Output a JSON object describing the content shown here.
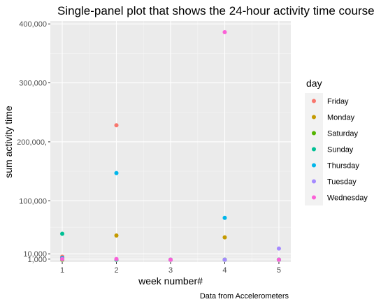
{
  "chart_data": {
    "type": "scatter",
    "title": "Single-panel plot that shows the 24-hour activity time course",
    "xlabel": "week number#",
    "ylabel": "sum activity time",
    "caption": "Data from Accelerometers",
    "x_ticks": [
      {
        "value": 1,
        "label": "1"
      },
      {
        "value": 2,
        "label": "2"
      },
      {
        "value": 3,
        "label": "3"
      },
      {
        "value": 4,
        "label": "4"
      },
      {
        "value": 5,
        "label": "5"
      }
    ],
    "y_ticks": [
      {
        "value": 1000,
        "label": "1,000"
      },
      {
        "value": 10000,
        "label": "10,000"
      },
      {
        "value": 100000,
        "label": "100,000"
      },
      {
        "value": 200000,
        "label": "200,000,"
      },
      {
        "value": 300000,
        "label": "300,000"
      },
      {
        "value": 400000,
        "label": "400,000"
      }
    ],
    "xlim": [
      0.78,
      5.22
    ],
    "ylim": [
      -4000,
      405000
    ],
    "grid": true,
    "legend_title": "day",
    "legend_position": "right",
    "series": [
      {
        "name": "Friday",
        "color": "#F8766D",
        "points": [
          {
            "x": 1,
            "y": 5000
          },
          {
            "x": 2,
            "y": 228000
          },
          {
            "x": 3,
            "y": 0
          },
          {
            "x": 4,
            "y": 0
          },
          {
            "x": 5,
            "y": 0
          }
        ]
      },
      {
        "name": "Monday",
        "color": "#C49A00",
        "points": [
          {
            "x": 1,
            "y": 2000
          },
          {
            "x": 2,
            "y": 41000
          },
          {
            "x": 3,
            "y": 0
          },
          {
            "x": 4,
            "y": 38000
          },
          {
            "x": 5,
            "y": 0
          }
        ]
      },
      {
        "name": "Saturday",
        "color": "#53B400",
        "points": [
          {
            "x": 1,
            "y": 0
          },
          {
            "x": 2,
            "y": 0
          },
          {
            "x": 3,
            "y": 0
          },
          {
            "x": 4,
            "y": 0
          },
          {
            "x": 5,
            "y": 0
          }
        ]
      },
      {
        "name": "Sunday",
        "color": "#00C094",
        "points": [
          {
            "x": 1,
            "y": 44000
          },
          {
            "x": 2,
            "y": 0
          },
          {
            "x": 3,
            "y": 0
          },
          {
            "x": 4,
            "y": 0
          },
          {
            "x": 5,
            "y": 0
          }
        ]
      },
      {
        "name": "Thursday",
        "color": "#00B6EB",
        "points": [
          {
            "x": 1,
            "y": 3000
          },
          {
            "x": 2,
            "y": 147000
          },
          {
            "x": 3,
            "y": 0
          },
          {
            "x": 4,
            "y": 71000
          },
          {
            "x": 5,
            "y": 0
          }
        ]
      },
      {
        "name": "Tuesday",
        "color": "#A58AFF",
        "points": [
          {
            "x": 1,
            "y": 1000
          },
          {
            "x": 2,
            "y": 1000
          },
          {
            "x": 3,
            "y": 0
          },
          {
            "x": 4,
            "y": 0
          },
          {
            "x": 5,
            "y": 19000
          }
        ]
      },
      {
        "name": "Wednesday",
        "color": "#FB61D7",
        "points": [
          {
            "x": 1,
            "y": 1000
          },
          {
            "x": 2,
            "y": 1000
          },
          {
            "x": 3,
            "y": 0
          },
          {
            "x": 4,
            "y": 386000
          },
          {
            "x": 5,
            "y": 0
          }
        ]
      }
    ]
  }
}
